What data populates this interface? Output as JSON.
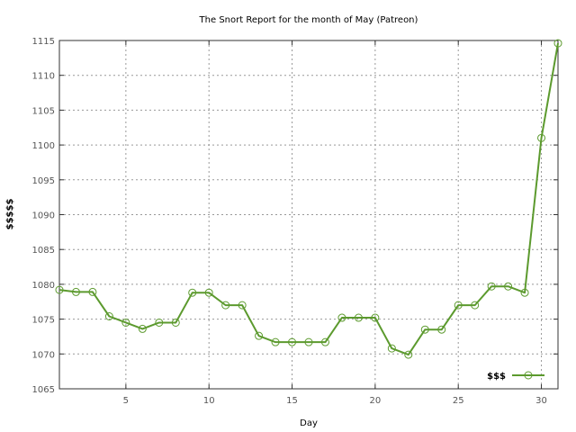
{
  "chart_data": {
    "type": "line",
    "title": "The Snort Report for the month of May (Patreon)",
    "xlabel": "Day",
    "ylabel": "$$$$$",
    "xlim": [
      1,
      31
    ],
    "ylim": [
      1065,
      1115
    ],
    "xticks": [
      5,
      10,
      15,
      20,
      25,
      30
    ],
    "yticks": [
      1065,
      1070,
      1075,
      1080,
      1085,
      1090,
      1095,
      1100,
      1105,
      1110,
      1115
    ],
    "grid": true,
    "legend_position": "bottom-right",
    "series": [
      {
        "name": "$$$",
        "color": "#5c9a2e",
        "marker": "open-circle",
        "x": [
          1,
          2,
          3,
          4,
          5,
          6,
          7,
          8,
          9,
          10,
          11,
          12,
          13,
          14,
          15,
          16,
          17,
          18,
          19,
          20,
          21,
          22,
          23,
          24,
          25,
          26,
          27,
          28,
          29,
          30,
          31
        ],
        "y": [
          1079.2,
          1078.9,
          1078.9,
          1075.4,
          1074.5,
          1073.6,
          1074.5,
          1074.5,
          1078.8,
          1078.8,
          1077.0,
          1077.0,
          1072.6,
          1071.7,
          1071.7,
          1071.7,
          1071.7,
          1075.2,
          1075.2,
          1075.2,
          1070.8,
          1069.9,
          1073.5,
          1073.5,
          1077.0,
          1077.0,
          1079.7,
          1079.7,
          1078.8,
          1101.0,
          1114.6
        ]
      }
    ]
  }
}
